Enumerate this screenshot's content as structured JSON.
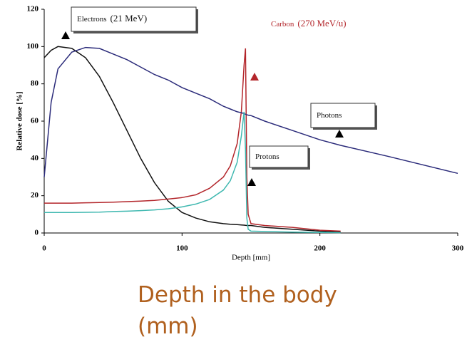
{
  "chart_data": {
    "type": "line",
    "ylabel": "Relative dose [%]",
    "xlabel": "Depth [mm]",
    "caption": "Depth in the body (mm)",
    "x": [
      0,
      5,
      10,
      20,
      30,
      40,
      50,
      60,
      70,
      80,
      90,
      100,
      110,
      120,
      130,
      135,
      140,
      143,
      145,
      146,
      147,
      148,
      150,
      160,
      180,
      200,
      215,
      250,
      300
    ],
    "series": [
      {
        "name": "Electrons",
        "note": "(21 MeV)",
        "color": "#111111",
        "values": [
          94,
          98,
          100,
          99,
          94,
          84,
          70,
          55,
          40,
          27,
          17,
          11,
          8,
          6,
          5,
          4.7,
          4.5,
          4.3,
          4.2,
          4.1,
          4.0,
          4.0,
          4,
          3,
          2,
          1,
          0.5,
          null,
          null
        ]
      },
      {
        "name": "Carbon",
        "note": "(270 MeV/u)",
        "color": "#b3262b",
        "values": [
          16,
          16,
          16,
          16,
          16.2,
          16.3,
          16.5,
          16.8,
          17.1,
          17.5,
          18.2,
          19,
          20.5,
          24,
          30,
          36,
          48,
          65,
          90,
          99,
          30,
          10,
          5,
          4,
          3,
          1.5,
          1,
          null,
          null
        ]
      },
      {
        "name": "Photons",
        "color": "#2b2b7a",
        "values": [
          30,
          70,
          88,
          97,
          99.5,
          99,
          96,
          93,
          89,
          85,
          82,
          78,
          75,
          72,
          68,
          66.5,
          65,
          64.5,
          64,
          63.7,
          63.4,
          63.2,
          63,
          60,
          55,
          50,
          47,
          41,
          32
        ]
      },
      {
        "name": "Protons",
        "color": "#3fb8b0",
        "values": [
          11,
          11,
          11,
          11,
          11.1,
          11.2,
          11.5,
          11.7,
          12,
          12.4,
          13,
          14,
          15.5,
          18,
          23,
          28,
          38,
          52,
          65,
          45,
          8,
          2,
          1,
          0.8,
          0.5,
          0.3,
          0.2,
          null,
          null
        ]
      }
    ],
    "xlim": [
      0,
      300
    ],
    "xticks": [
      0,
      100,
      200,
      300
    ],
    "ylim": [
      0,
      120
    ],
    "yticks": [
      0,
      20,
      40,
      60,
      80,
      100,
      120
    ]
  }
}
